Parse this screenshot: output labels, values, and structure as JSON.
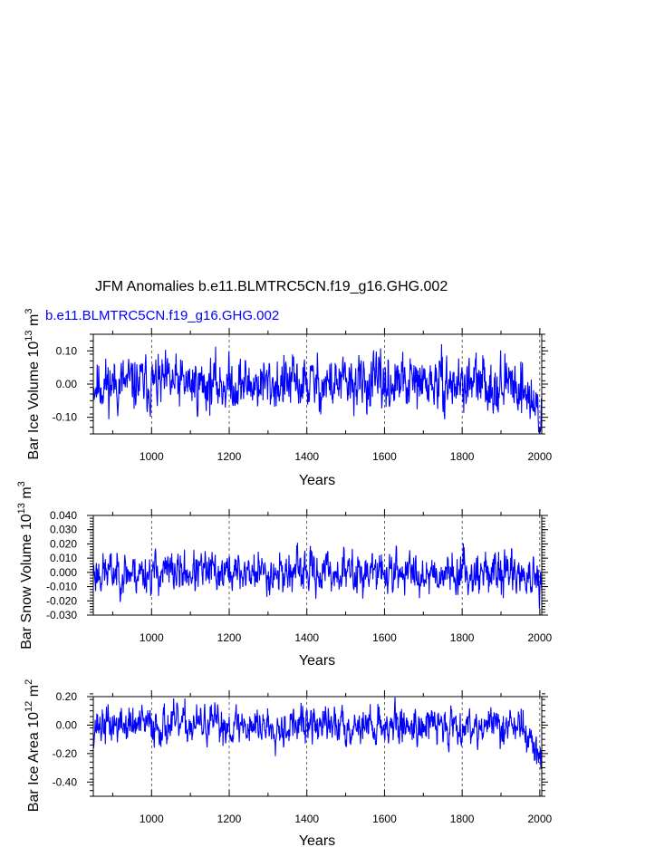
{
  "title": "JFM Anomalies b.e11.BLMTRC5CN.f19_g16.GHG.002",
  "subtitle": "b.e11.BLMTRC5CN.f19_g16.GHG.002",
  "series_color": "#0000ff",
  "chart_data": [
    {
      "type": "line",
      "name": "panel-ice-volume",
      "xlabel": "Years",
      "ylabel_text": "Bar Ice Volume 10",
      "ylabel_exp": "13",
      "ylabel_unit": " m",
      "ylabel_unit_exp": "3",
      "xlim": [
        850,
        2005
      ],
      "ylim": [
        -0.15,
        0.15
      ],
      "xticks": [
        1000,
        1200,
        1400,
        1600,
        1800,
        2000
      ],
      "xtick_labels": [
        "1000",
        "1200",
        "1400",
        "1600",
        "1800",
        "2000"
      ],
      "yticks": [
        0.1,
        0.0,
        -0.1
      ],
      "ytick_labels": [
        "0.10",
        "0.00",
        "-0.10"
      ],
      "ymin_spacing": 0.02,
      "vlines": [
        1000,
        1200,
        1400,
        1600,
        1800,
        2000
      ],
      "amp": 0.045,
      "trend_end": -0.1,
      "seed": 11,
      "x": [
        850,
        2005
      ]
    },
    {
      "type": "line",
      "name": "panel-snow-volume",
      "xlabel": "Years",
      "ylabel_text": "Bar Snow Volume 10",
      "ylabel_exp": "13",
      "ylabel_unit": " m",
      "ylabel_unit_exp": "3",
      "xlim": [
        850,
        2005
      ],
      "ylim": [
        -0.03,
        0.04
      ],
      "xticks": [
        1000,
        1200,
        1400,
        1600,
        1800,
        2000
      ],
      "xtick_labels": [
        "1000",
        "1200",
        "1400",
        "1600",
        "1800",
        "2000"
      ],
      "yticks": [
        0.04,
        0.03,
        0.02,
        0.01,
        0.0,
        -0.01,
        -0.02,
        -0.03
      ],
      "ytick_labels": [
        "0.040",
        "0.030",
        "0.020",
        "0.010",
        "0.000",
        "-0.010",
        "-0.020",
        "-0.030"
      ],
      "ymin_spacing": 0.002,
      "vlines": [
        1000,
        1200,
        1400,
        1600,
        1800,
        2000
      ],
      "amp": 0.008,
      "trend_end": -0.012,
      "seed": 23,
      "x": [
        850,
        2005
      ]
    },
    {
      "type": "line",
      "name": "panel-ice-area",
      "xlabel": "Years",
      "ylabel_text": "Bar Ice Area 10",
      "ylabel_exp": "12",
      "ylabel_unit": " m",
      "ylabel_unit_exp": "2",
      "xlim": [
        850,
        2005
      ],
      "ylim": [
        -0.5,
        0.2
      ],
      "xticks": [
        1000,
        1200,
        1400,
        1600,
        1800,
        2000
      ],
      "xtick_labels": [
        "1000",
        "1200",
        "1400",
        "1600",
        "1800",
        "2000"
      ],
      "yticks": [
        0.2,
        0.0,
        -0.2,
        -0.4
      ],
      "ytick_labels": [
        "0.20",
        "0.00",
        "-0.20",
        "-0.40"
      ],
      "ymin_spacing": 0.04,
      "vlines": [
        1000,
        1200,
        1400,
        1600,
        1800,
        2000
      ],
      "amp": 0.075,
      "trend_end": -0.25,
      "seed": 37,
      "x": [
        850,
        2005
      ]
    }
  ]
}
